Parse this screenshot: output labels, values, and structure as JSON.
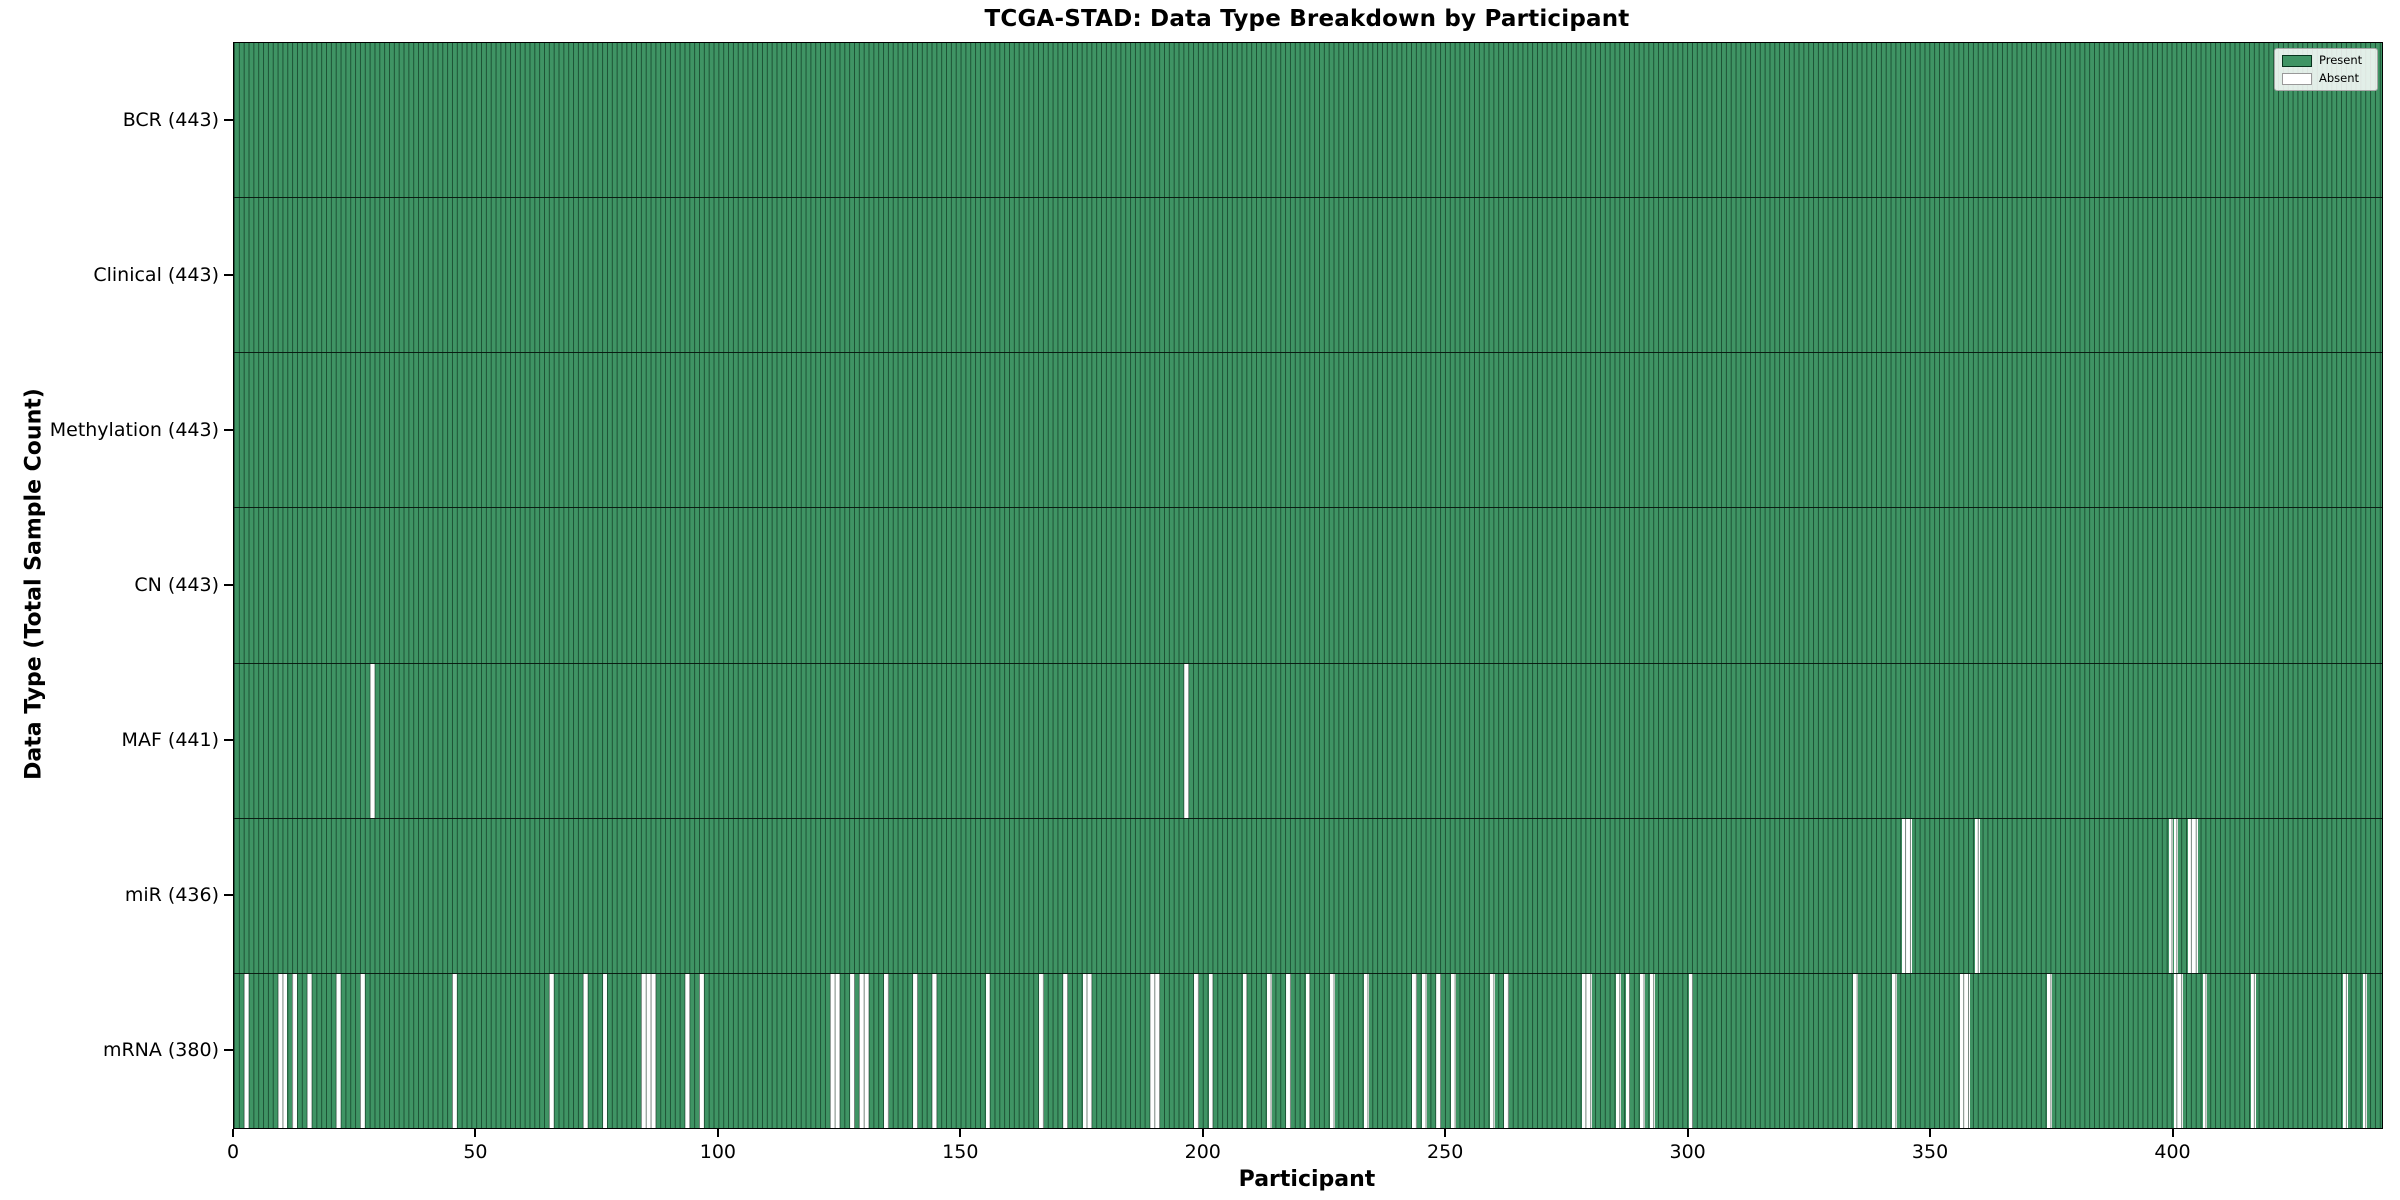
{
  "title": "TCGA-STAD: Data Type Breakdown by Participant",
  "legend": {
    "present_label": "Present",
    "absent_label": "Absent"
  },
  "colors": {
    "present": "#3f9464",
    "absent": "#ffffff",
    "bar_edge": "rgba(0,26,13,0.55)",
    "row_separator": "rgba(0,0,0,0.8)",
    "spine": "#000000"
  },
  "chart_data": {
    "type": "heatmap",
    "title": "TCGA-STAD: Data Type Breakdown by Participant",
    "xlabel": "Participant",
    "ylabel": "Data Type (Total Sample Count)",
    "n_participants": 443,
    "x_ticks": [
      0,
      50,
      100,
      150,
      200,
      250,
      300,
      350,
      400
    ],
    "xlim": [
      0,
      443
    ],
    "legend_entries": [
      "Present",
      "Absent"
    ],
    "grid": false,
    "legend_position": "upper right",
    "rows": [
      {
        "data_type": "BCR",
        "label": "BCR (443)",
        "present_count": 443,
        "absent_participants": []
      },
      {
        "data_type": "Clinical",
        "label": "Clinical (443)",
        "present_count": 443,
        "absent_participants": []
      },
      {
        "data_type": "Methylation",
        "label": "Methylation (443)",
        "present_count": 443,
        "absent_participants": []
      },
      {
        "data_type": "CN",
        "label": "CN (443)",
        "present_count": 443,
        "absent_participants": []
      },
      {
        "data_type": "MAF",
        "label": "MAF (441)",
        "present_count": 441,
        "absent_participants": [
          28,
          196
        ]
      },
      {
        "data_type": "miR",
        "label": "miR (436)",
        "present_count": 436,
        "absent_participants": [
          344,
          345,
          359,
          399,
          400,
          403,
          404
        ]
      },
      {
        "data_type": "mRNA",
        "label": "mRNA (380)",
        "present_count": 380,
        "absent_participants": [
          2,
          9,
          10,
          12,
          15,
          21,
          26,
          45,
          65,
          72,
          76,
          84,
          85,
          86,
          93,
          96,
          123,
          124,
          127,
          129,
          130,
          134,
          140,
          144,
          155,
          166,
          171,
          175,
          176,
          189,
          190,
          198,
          201,
          208,
          213,
          217,
          221,
          226,
          233,
          243,
          245,
          248,
          251,
          259,
          262,
          278,
          279,
          285,
          287,
          290,
          292,
          300,
          334,
          342,
          356,
          357,
          374,
          400,
          401,
          406,
          416,
          435,
          439
        ]
      }
    ]
  }
}
